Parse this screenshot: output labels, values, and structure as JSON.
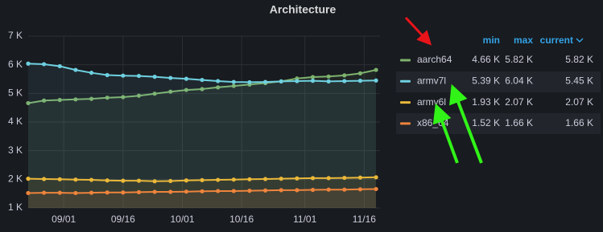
{
  "chart_data": {
    "type": "line",
    "title": "Architecture",
    "x": [
      "08/23",
      "08/27",
      "08/31",
      "09/04",
      "09/08",
      "09/12",
      "09/16",
      "09/20",
      "09/24",
      "09/28",
      "10/02",
      "10/06",
      "10/10",
      "10/14",
      "10/18",
      "10/22",
      "10/26",
      "10/30",
      "11/03",
      "11/07",
      "11/11",
      "11/15",
      "11/19"
    ],
    "xlim": [
      "08/23",
      "11/20"
    ],
    "xticks": [
      "09/01",
      "09/16",
      "10/01",
      "10/16",
      "11/01",
      "11/16"
    ],
    "ylim": [
      1000,
      7000
    ],
    "yticks": [
      {
        "value": 1000,
        "label": "1 K"
      },
      {
        "value": 2000,
        "label": "2 K"
      },
      {
        "value": 3000,
        "label": "3 K"
      },
      {
        "value": 4000,
        "label": "4 K"
      },
      {
        "value": 5000,
        "label": "5 K"
      },
      {
        "value": 6000,
        "label": "6 K"
      },
      {
        "value": 7000,
        "label": "7 K"
      }
    ],
    "grid": true,
    "legend_columns": [
      "min",
      "max",
      "current"
    ],
    "series": [
      {
        "name": "aarch64",
        "color": "#7eb26d",
        "values": [
          4660,
          4750,
          4770,
          4790,
          4810,
          4850,
          4870,
          4920,
          4990,
          5060,
          5120,
          5150,
          5210,
          5260,
          5310,
          5360,
          5420,
          5520,
          5570,
          5590,
          5630,
          5700,
          5820
        ],
        "legend_values": [
          {
            "value": 4660,
            "label": "4.66 K"
          },
          {
            "value": 5820,
            "label": "5.82 K"
          },
          {
            "value": 5820,
            "label": "5.82 K"
          }
        ]
      },
      {
        "name": "armv7l",
        "color": "#6ed0e0",
        "values": [
          6040,
          6020,
          5950,
          5820,
          5720,
          5640,
          5620,
          5610,
          5580,
          5540,
          5510,
          5470,
          5430,
          5400,
          5390,
          5400,
          5420,
          5430,
          5440,
          5420,
          5430,
          5440,
          5450
        ],
        "legend_values": [
          {
            "value": 5390,
            "label": "5.39 K"
          },
          {
            "value": 6040,
            "label": "6.04 K"
          },
          {
            "value": 5450,
            "label": "5.45 K"
          }
        ]
      },
      {
        "name": "armv6l",
        "color": "#eab839",
        "values": [
          2020,
          2010,
          2000,
          1990,
          1980,
          1960,
          1950,
          1950,
          1930,
          1940,
          1960,
          1970,
          1980,
          1990,
          2000,
          2010,
          2020,
          2030,
          2040,
          2040,
          2050,
          2060,
          2070
        ],
        "legend_values": [
          {
            "value": 1930,
            "label": "1.93 K"
          },
          {
            "value": 2070,
            "label": "2.07 K"
          },
          {
            "value": 2070,
            "label": "2.07 K"
          }
        ]
      },
      {
        "name": "x86_64",
        "color": "#ef843c",
        "values": [
          1520,
          1530,
          1530,
          1520,
          1530,
          1540,
          1540,
          1550,
          1560,
          1560,
          1570,
          1580,
          1590,
          1590,
          1600,
          1610,
          1620,
          1620,
          1630,
          1640,
          1640,
          1650,
          1660
        ],
        "legend_values": [
          {
            "value": 1520,
            "label": "1.52 K"
          },
          {
            "value": 1660,
            "label": "1.66 K"
          },
          {
            "value": 1660,
            "label": "1.66 K"
          }
        ]
      }
    ]
  }
}
